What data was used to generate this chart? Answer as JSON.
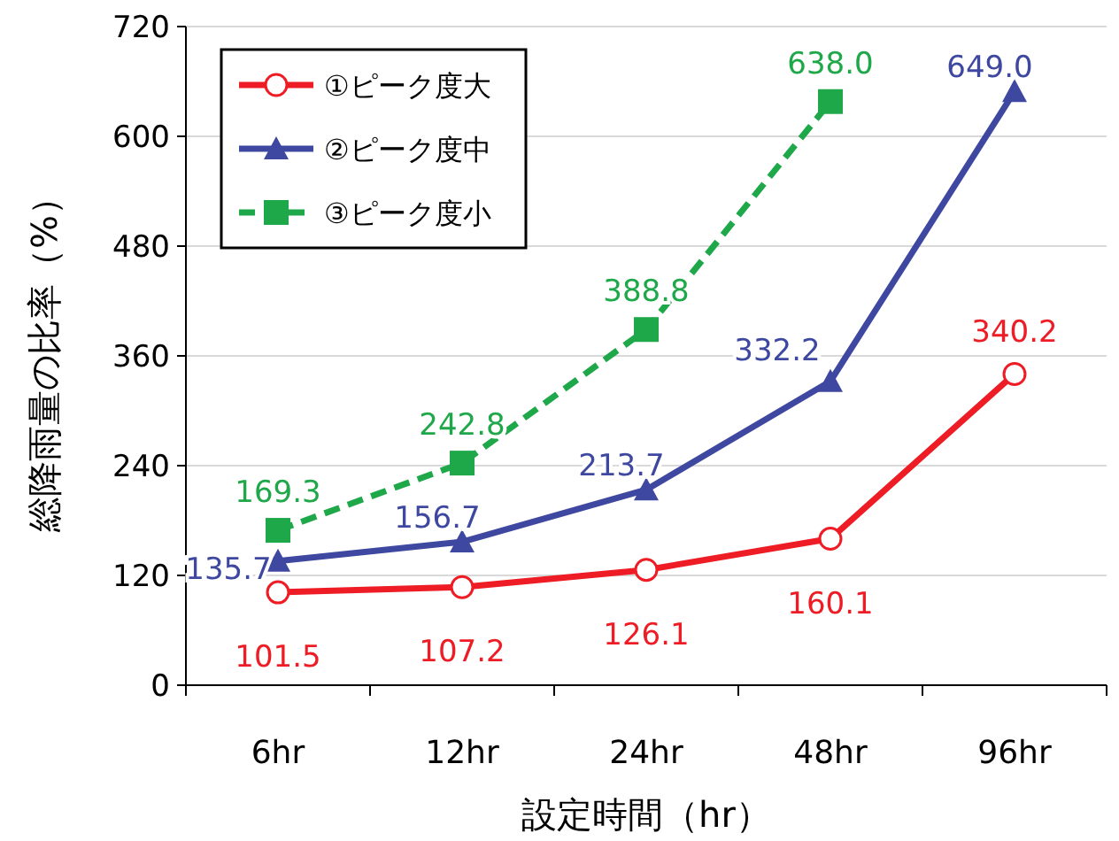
{
  "chart_data": {
    "type": "line",
    "xlabel": "設定時間（hr）",
    "ylabel": "総降雨量の比率（%）",
    "categories": [
      "6hr",
      "12hr",
      "24hr",
      "48hr",
      "96hr"
    ],
    "ylim": [
      0,
      720
    ],
    "yticks": [
      0,
      120,
      240,
      360,
      480,
      600,
      720
    ],
    "grid": "y",
    "legend": "top left",
    "series": [
      {
        "name": "①ピーク度大",
        "color": "#ee1c25",
        "marker": "circle",
        "line_style": "solid",
        "values": [
          101.5,
          107.2,
          126.1,
          160.1,
          340.2
        ],
        "value_labels": [
          "101.5",
          "107.2",
          "126.1",
          "160.1",
          "340.2"
        ]
      },
      {
        "name": "②ピーク度中",
        "color": "#3f48a0",
        "marker": "triangle",
        "line_style": "solid",
        "values": [
          135.7,
          156.7,
          213.7,
          332.2,
          649.0
        ],
        "value_labels": [
          "135.7",
          "156.7",
          "213.7",
          "332.2",
          "649.0"
        ]
      },
      {
        "name": "③ピーク度小",
        "color": "#1fa84a",
        "marker": "square",
        "line_style": "dashed",
        "values": [
          169.3,
          242.8,
          388.8,
          638.0,
          null
        ],
        "value_labels": [
          "169.3",
          "242.8",
          "388.8",
          "638.0",
          null
        ]
      }
    ]
  }
}
